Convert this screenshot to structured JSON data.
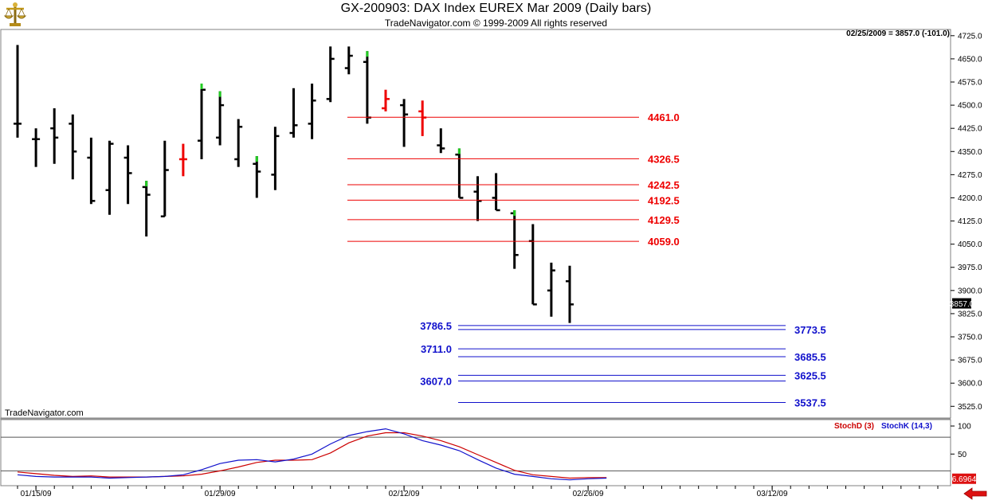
{
  "header": {
    "title": "GX-200903:  DAX Index EUREX Mar 2009  (Daily bars)",
    "subtitle": "TradeNavigator.com © 1999-2009 All rights reserved"
  },
  "readout": "02/25/2009 = 3857.0 (-101.0)",
  "watermark": "TradeNavigator.com",
  "icons": {
    "logo": "scales-logo-icon",
    "nav": "left-arrow-icon"
  },
  "colors": {
    "up_tick": "#22cc22",
    "reversal_bar": "#ee0000",
    "resistance": "#ee0000",
    "support": "#1111cc",
    "stoch_d": "#cc0000",
    "stoch_k": "#1111cc",
    "price_tag_bg": "#000000"
  },
  "chart_data": [
    {
      "type": "ohlc",
      "y_range": [
        3500,
        4740
      ],
      "y_ticks": [
        "4725.0",
        "4650.0",
        "4575.0",
        "4500.0",
        "4425.0",
        "4350.0",
        "4275.0",
        "4200.0",
        "4125.0",
        "4050.0",
        "3975.0",
        "3900.0",
        "3825.0",
        "3750.0",
        "3675.0",
        "3600.0",
        "3525.0"
      ],
      "x_tick_labels": [
        {
          "label": "01/15/09",
          "slot": 1
        },
        {
          "label": "01/29/09",
          "slot": 11
        },
        {
          "label": "02/12/09",
          "slot": 21
        },
        {
          "label": "02/26/09",
          "slot": 31
        },
        {
          "label": "03/12/09",
          "slot": 41
        }
      ],
      "last_price": "3857.0",
      "bars": [
        {
          "slot": 0,
          "o": 4440,
          "h": 4695,
          "l": 4395,
          "c": 4440
        },
        {
          "slot": 1,
          "o": 4390,
          "h": 4425,
          "l": 4300,
          "c": 4390
        },
        {
          "slot": 2,
          "o": 4425,
          "h": 4490,
          "l": 4310,
          "c": 4395
        },
        {
          "slot": 3,
          "o": 4440,
          "h": 4470,
          "l": 4260,
          "c": 4350
        },
        {
          "slot": 4,
          "o": 4330,
          "h": 4395,
          "l": 4180,
          "c": 4190
        },
        {
          "slot": 5,
          "o": 4225,
          "h": 4385,
          "l": 4145,
          "c": 4375
        },
        {
          "slot": 6,
          "o": 4330,
          "h": 4370,
          "l": 4180,
          "c": 4280
        },
        {
          "slot": 7,
          "o": 4235,
          "h": 4255,
          "l": 4075,
          "c": 4210,
          "up": true
        },
        {
          "slot": 8,
          "o": 4140,
          "h": 4385,
          "l": 4140,
          "c": 4290
        },
        {
          "slot": 9,
          "o": 4325,
          "h": 4375,
          "l": 4270,
          "c": 4325,
          "red": true
        },
        {
          "slot": 10,
          "o": 4385,
          "h": 4570,
          "l": 4325,
          "c": 4550,
          "up": true
        },
        {
          "slot": 11,
          "o": 4395,
          "h": 4545,
          "l": 4370,
          "c": 4500,
          "up": true
        },
        {
          "slot": 12,
          "o": 4325,
          "h": 4455,
          "l": 4300,
          "c": 4430
        },
        {
          "slot": 13,
          "o": 4310,
          "h": 4335,
          "l": 4200,
          "c": 4285,
          "up": true
        },
        {
          "slot": 14,
          "o": 4275,
          "h": 4430,
          "l": 4225,
          "c": 4400
        },
        {
          "slot": 15,
          "o": 4410,
          "h": 4555,
          "l": 4395,
          "c": 4435
        },
        {
          "slot": 16,
          "o": 4440,
          "h": 4570,
          "l": 4390,
          "c": 4515
        },
        {
          "slot": 17,
          "o": 4520,
          "h": 4690,
          "l": 4510,
          "c": 4650
        },
        {
          "slot": 18,
          "o": 4620,
          "h": 4690,
          "l": 4600,
          "c": 4660
        },
        {
          "slot": 19,
          "o": 4640,
          "h": 4675,
          "l": 4440,
          "c": 4460,
          "up": true
        },
        {
          "slot": 20,
          "o": 4490,
          "h": 4550,
          "l": 4480,
          "c": 4520,
          "red": true
        },
        {
          "slot": 21,
          "o": 4500,
          "h": 4520,
          "l": 4365,
          "c": 4470
        },
        {
          "slot": 22,
          "o": 4480,
          "h": 4515,
          "l": 4400,
          "c": 4460,
          "red": true
        },
        {
          "slot": 23,
          "o": 4370,
          "h": 4425,
          "l": 4345,
          "c": 4360
        },
        {
          "slot": 24,
          "o": 4340,
          "h": 4360,
          "l": 4200,
          "c": 4200,
          "up": true
        },
        {
          "slot": 25,
          "o": 4220,
          "h": 4270,
          "l": 4125,
          "c": 4190
        },
        {
          "slot": 26,
          "o": 4200,
          "h": 4280,
          "l": 4160,
          "c": 4160
        },
        {
          "slot": 27,
          "o": 4150,
          "h": 4160,
          "l": 3970,
          "c": 4015,
          "up": true
        },
        {
          "slot": 28,
          "o": 4060,
          "h": 4115,
          "l": 3855,
          "c": 3855
        },
        {
          "slot": 29,
          "o": 3900,
          "h": 3990,
          "l": 3815,
          "c": 3965
        },
        {
          "slot": 30,
          "o": 3930,
          "h": 3980,
          "l": 3795,
          "c": 3855
        }
      ],
      "levels": [
        {
          "label": "4461.0",
          "value": 4461.0,
          "group": "resistance",
          "side": "right"
        },
        {
          "label": "4326.5",
          "value": 4326.5,
          "group": "resistance",
          "side": "right"
        },
        {
          "label": "4242.5",
          "value": 4242.5,
          "group": "resistance",
          "side": "right"
        },
        {
          "label": "4192.5",
          "value": 4192.5,
          "group": "resistance",
          "side": "right"
        },
        {
          "label": "4129.5",
          "value": 4129.5,
          "group": "resistance",
          "side": "right"
        },
        {
          "label": "4059.0",
          "value": 4059.0,
          "group": "resistance",
          "side": "right"
        },
        {
          "label": "3786.5",
          "value": 3786.5,
          "group": "support",
          "side": "left"
        },
        {
          "label": "3773.5",
          "value": 3773.5,
          "group": "support",
          "side": "right"
        },
        {
          "label": "3711.0",
          "value": 3711.0,
          "group": "support",
          "side": "left"
        },
        {
          "label": "3685.5",
          "value": 3685.5,
          "group": "support",
          "side": "right"
        },
        {
          "label": "3625.5",
          "value": 3625.5,
          "group": "support",
          "side": "right"
        },
        {
          "label": "3607.0",
          "value": 3607.0,
          "group": "support",
          "side": "left"
        },
        {
          "label": "3537.5",
          "value": 3537.5,
          "group": "support",
          "side": "right"
        }
      ]
    },
    {
      "type": "line",
      "y_range": [
        -5,
        110
      ],
      "y_ticks": [
        "100",
        "50"
      ],
      "reference_lines": [
        80,
        20
      ],
      "last_value": "6.6964",
      "series": [
        {
          "name": "StochD (3)",
          "values": [
            18,
            15,
            12,
            10,
            11,
            9,
            9,
            9,
            10,
            11,
            14,
            20,
            27,
            35,
            39,
            39,
            40,
            52,
            70,
            82,
            88,
            88,
            82,
            74,
            63,
            49,
            35,
            21,
            13,
            10,
            7,
            8,
            8
          ]
        },
        {
          "name": "StochK (14,3)",
          "values": [
            13,
            10,
            9,
            9,
            9,
            7,
            8,
            9,
            10,
            13,
            22,
            33,
            39,
            40,
            36,
            41,
            50,
            68,
            83,
            90,
            95,
            86,
            74,
            66,
            56,
            40,
            25,
            14,
            10,
            6,
            4,
            6,
            7
          ]
        }
      ]
    }
  ]
}
